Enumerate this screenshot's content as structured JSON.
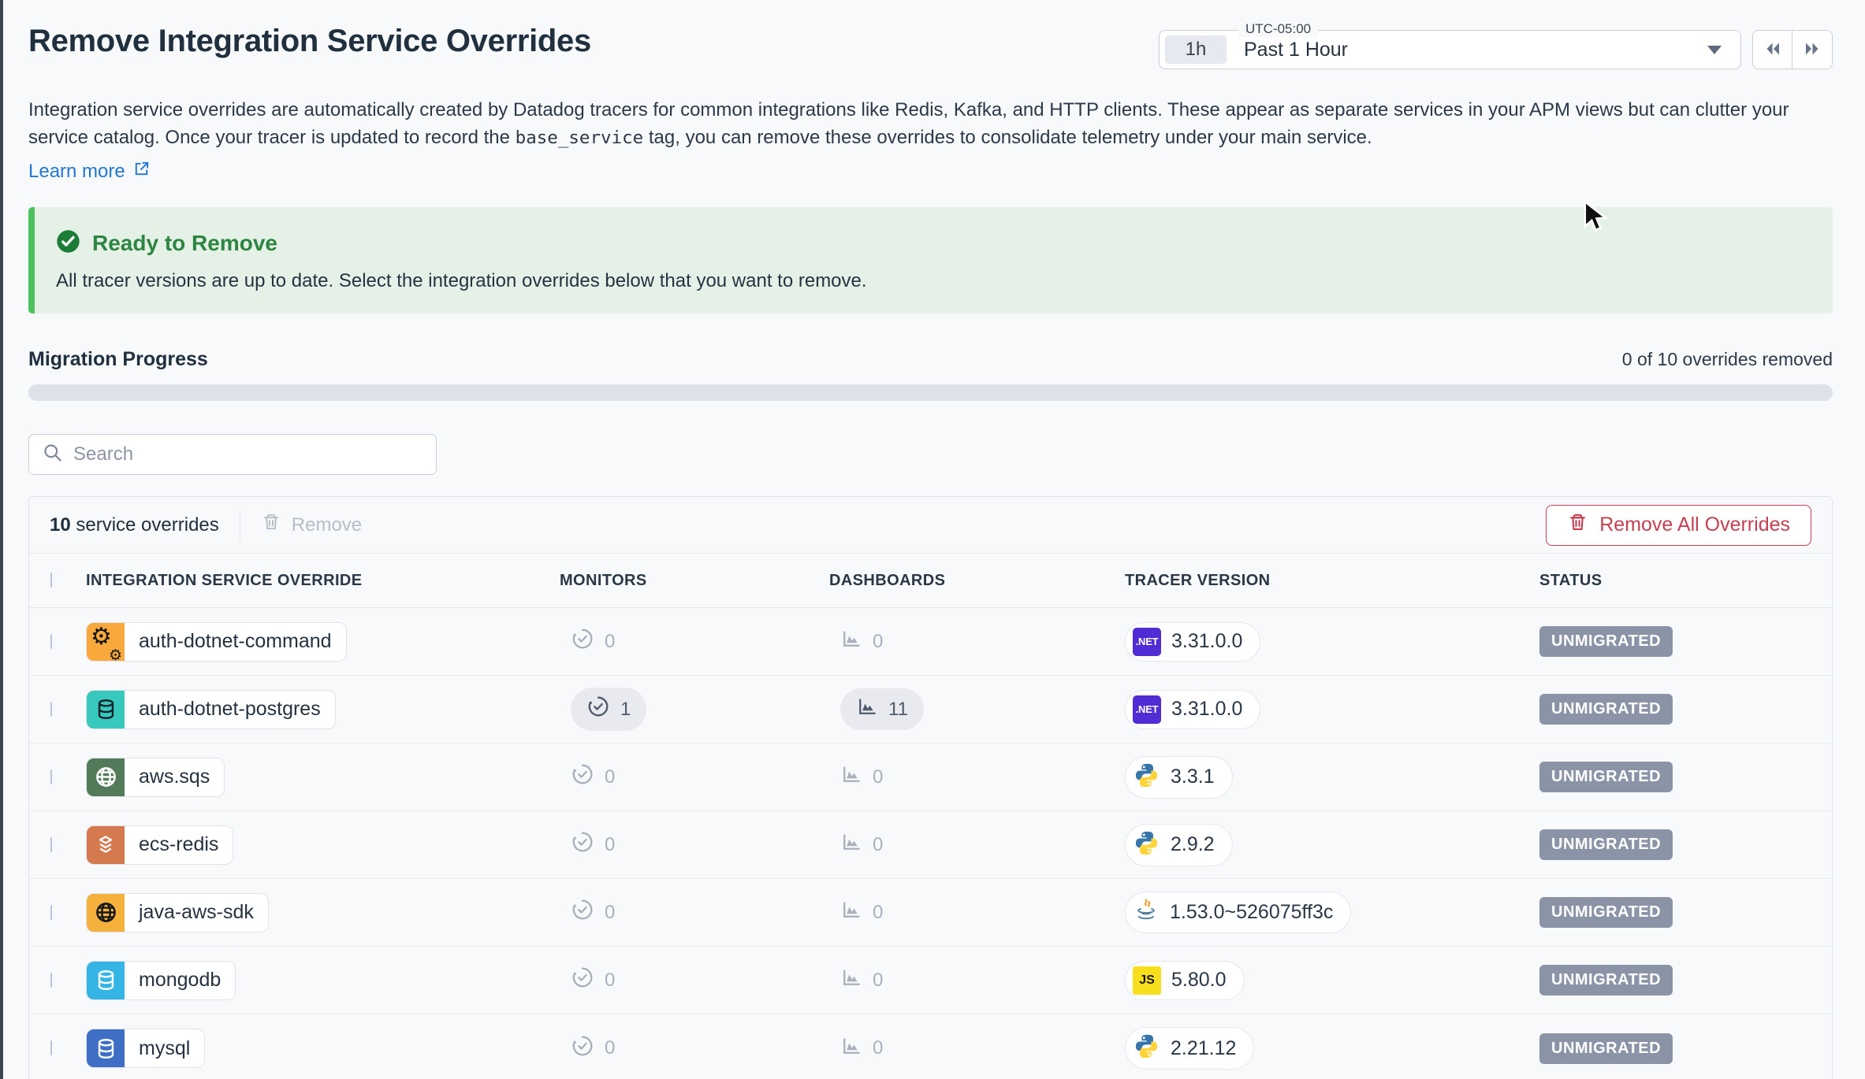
{
  "header": {
    "title": "Remove Integration Service Overrides",
    "time_picker": {
      "timezone": "UTC-05:00",
      "range_short": "1h",
      "range_label": "Past 1 Hour"
    },
    "description_part1": "Integration service overrides are automatically created by Datadog tracers for common integrations like Redis, Kafka, and HTTP clients. These appear as separate services in your APM views but can clutter your service catalog. Once your tracer is updated to record the ",
    "description_code": "base_service",
    "description_part2": " tag, you can remove these overrides to consolidate telemetry under your main service.",
    "learn_more_label": "Learn more"
  },
  "banner": {
    "title": "Ready to Remove",
    "message": "All tracer versions are up to date. Select the integration overrides below that you want to remove."
  },
  "progress": {
    "label": "Migration Progress",
    "status_text": "0 of 10 overrides removed",
    "percent": 0
  },
  "search": {
    "placeholder": "Search"
  },
  "toolbar": {
    "count": "10",
    "count_label": " service overrides",
    "remove_label": "Remove",
    "remove_all_label": "Remove All Overrides"
  },
  "table": {
    "columns": [
      "INTEGRATION SERVICE OVERRIDE",
      "MONITORS",
      "DASHBOARDS",
      "TRACER VERSION",
      "STATUS"
    ],
    "rows": [
      {
        "service": "auth-dotnet-command",
        "icon": "gears-icon",
        "icon_bg": "#F9A93B",
        "icon_fg": "#15161a",
        "monitors": "0",
        "monitors_pill": false,
        "dashboards": "0",
        "dashboards_pill": false,
        "runtime": "dotnet",
        "runtime_icon": "dotnet-icon",
        "version": "3.31.0.0",
        "status": "UNMIGRATED"
      },
      {
        "service": "auth-dotnet-postgres",
        "icon": "database-icon",
        "icon_bg": "#37C9BD",
        "icon_fg": "#12222b",
        "monitors": "1",
        "monitors_pill": true,
        "dashboards": "11",
        "dashboards_pill": true,
        "runtime": "dotnet",
        "runtime_icon": "dotnet-icon",
        "version": "3.31.0.0",
        "status": "UNMIGRATED"
      },
      {
        "service": "aws.sqs",
        "icon": "globe-icon",
        "icon_bg": "#537B59",
        "icon_fg": "#ffffff",
        "monitors": "0",
        "monitors_pill": false,
        "dashboards": "0",
        "dashboards_pill": false,
        "runtime": "python",
        "runtime_icon": "python-icon",
        "version": "3.3.1",
        "status": "UNMIGRATED"
      },
      {
        "service": "ecs-redis",
        "icon": "layers-icon",
        "icon_bg": "#D5794F",
        "icon_fg": "#ffffff",
        "monitors": "0",
        "monitors_pill": false,
        "dashboards": "0",
        "dashboards_pill": false,
        "runtime": "python",
        "runtime_icon": "python-icon",
        "version": "2.9.2",
        "status": "UNMIGRATED"
      },
      {
        "service": "java-aws-sdk",
        "icon": "globe-icon",
        "icon_bg": "#F6B03C",
        "icon_fg": "#15161a",
        "monitors": "0",
        "monitors_pill": false,
        "dashboards": "0",
        "dashboards_pill": false,
        "runtime": "java",
        "runtime_icon": "java-icon",
        "version": "1.53.0~526075ff3c",
        "status": "UNMIGRATED"
      },
      {
        "service": "mongodb",
        "icon": "database-icon",
        "icon_bg": "#35B5E5",
        "icon_fg": "#ffffff",
        "monitors": "0",
        "monitors_pill": false,
        "dashboards": "0",
        "dashboards_pill": false,
        "runtime": "js",
        "runtime_icon": "js-icon",
        "version": "5.80.0",
        "status": "UNMIGRATED"
      },
      {
        "service": "mysql",
        "icon": "database-icon",
        "icon_bg": "#3E6FC5",
        "icon_fg": "#ffffff",
        "monitors": "0",
        "monitors_pill": false,
        "dashboards": "0",
        "dashboards_pill": false,
        "runtime": "python",
        "runtime_icon": "python-icon",
        "version": "2.21.12",
        "status": "UNMIGRATED"
      }
    ]
  },
  "runtime_labels": {
    "dotnet": ".NET",
    "js": "JS"
  },
  "icons": {
    "search": "magnifier",
    "trash": "trash-can",
    "check_circle": "green-check-circle",
    "external_link": "arrow-out-of-box",
    "rewind": "double-chevron-left",
    "fast_forward": "double-chevron-right",
    "chevron_down": "triangle-down",
    "monitor": "gauge-check",
    "dashboard": "area-chart",
    "cursor": "arrow-pointer"
  },
  "colors": {
    "accent_green": "#4CC25F",
    "banner_bg": "#E5F1E6",
    "banner_title": "#2C8540",
    "link_blue": "#2178D4",
    "danger_red": "#C63E50",
    "badge_bg": "#8A94A6",
    "dotnet_purple": "#512BD4",
    "js_yellow": "#F7DF1E",
    "text_dark": "#21303E"
  }
}
